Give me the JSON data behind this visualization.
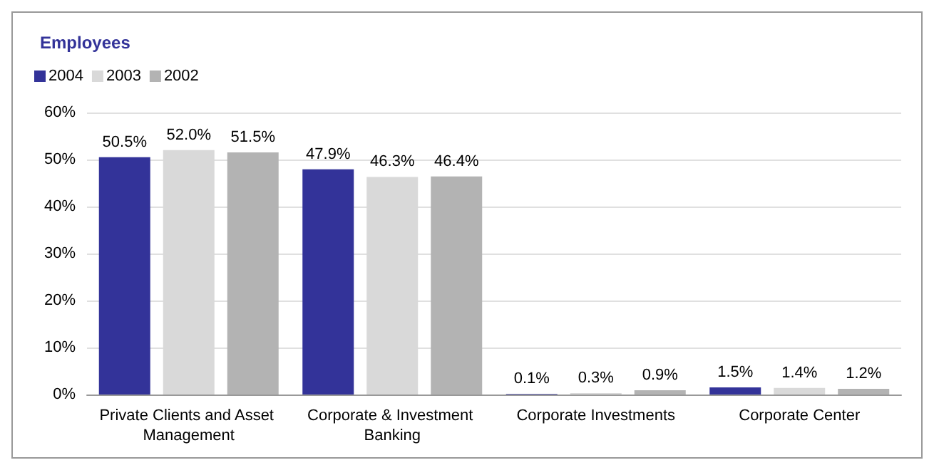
{
  "chart_data": {
    "type": "bar",
    "title": "Employees",
    "categories": [
      "Private Clients and Asset Management",
      "Corporate & Investment Banking",
      "Corporate Investments",
      "Corporate Center"
    ],
    "series": [
      {
        "name": "2004",
        "color": "#333399",
        "values": [
          50.5,
          47.9,
          0.1,
          1.5
        ],
        "value_labels": [
          "50.5%",
          "47.9%",
          "0.1%",
          "1.5%"
        ]
      },
      {
        "name": "2003",
        "color": "#d9d9d9",
        "values": [
          52.0,
          46.3,
          0.3,
          1.4
        ],
        "value_labels": [
          "52.0%",
          "46.3%",
          "0.3%",
          "1.4%"
        ]
      },
      {
        "name": "2002",
        "color": "#b3b3b3",
        "values": [
          51.5,
          46.4,
          0.9,
          1.2
        ],
        "value_labels": [
          "51.5%",
          "46.4%",
          "0.9%",
          "1.2%"
        ]
      }
    ],
    "ylim": [
      0,
      60
    ],
    "yticks": [
      {
        "value": 0,
        "label": "0%"
      },
      {
        "value": 10,
        "label": "10%"
      },
      {
        "value": 20,
        "label": "20%"
      },
      {
        "value": 30,
        "label": "30%"
      },
      {
        "value": 40,
        "label": "40%"
      },
      {
        "value": 50,
        "label": "50%"
      },
      {
        "value": 60,
        "label": "60%"
      }
    ],
    "grid": "y",
    "legend": "top left"
  }
}
